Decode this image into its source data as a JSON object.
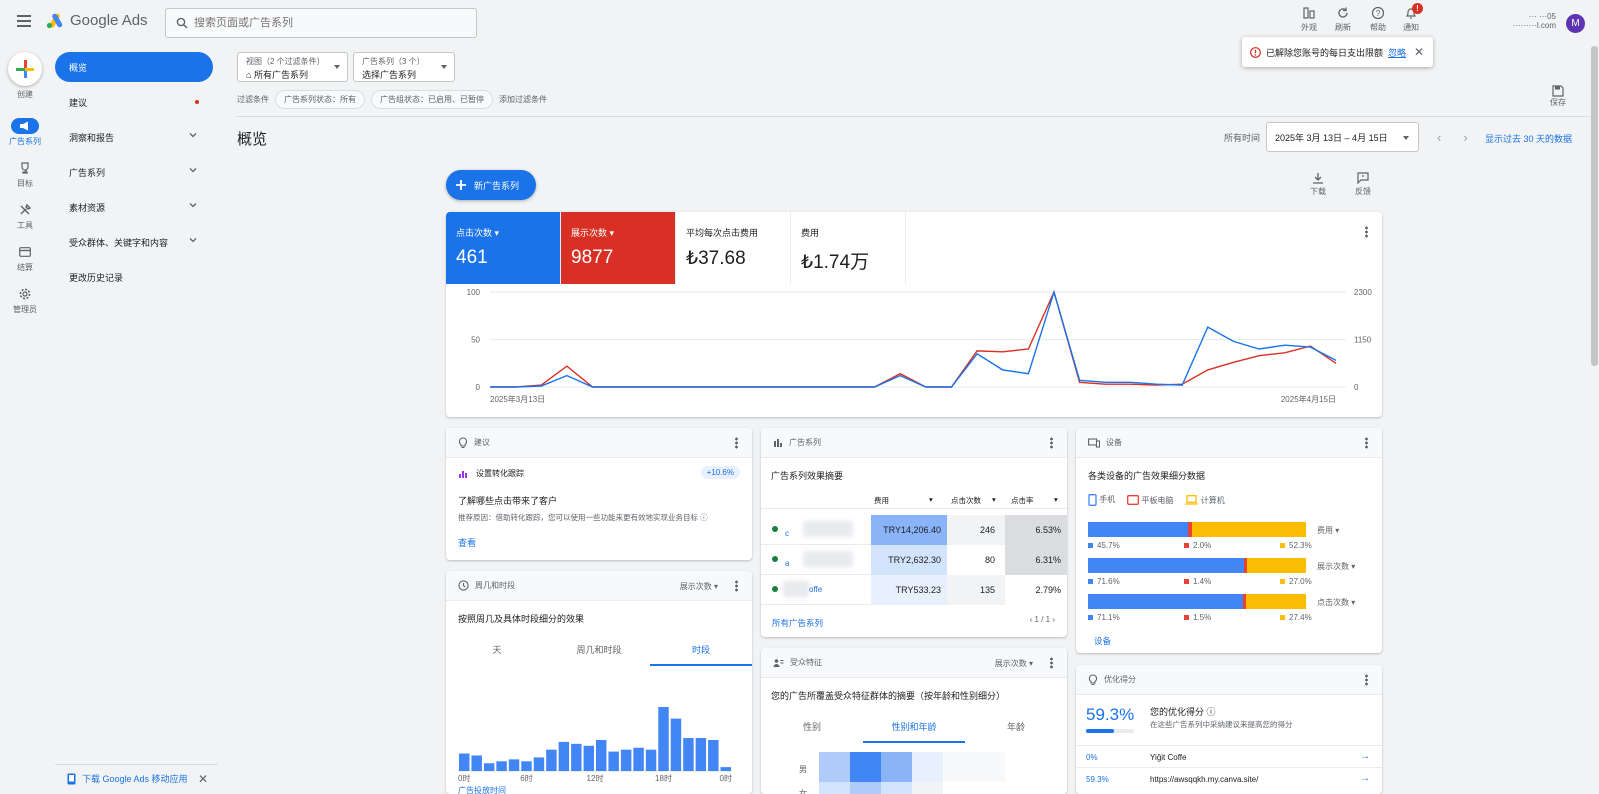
{
  "header": {
    "app_name": "Google Ads",
    "search_placeholder": "搜索页面或广告系列",
    "tools": [
      {
        "label": "外观"
      },
      {
        "label": "刷新"
      },
      {
        "label": "帮助"
      },
      {
        "label": "通知",
        "badge": "!"
      }
    ],
    "account_line1": "··· ···05",
    "account_line2": "·········l.com",
    "avatar_initial": "M"
  },
  "rail": {
    "create": "创建",
    "items": [
      {
        "label": "广告系列",
        "active": true
      },
      {
        "label": "目标"
      },
      {
        "label": "工具"
      },
      {
        "label": "结算"
      },
      {
        "label": "管理员"
      }
    ]
  },
  "nav": {
    "items": [
      {
        "label": "概览"
      },
      {
        "label": "建议"
      },
      {
        "label": "洞察和报告"
      },
      {
        "label": "广告系列"
      },
      {
        "label": "素材资源"
      },
      {
        "label": "受众群体、关键字和内容"
      },
      {
        "label": "更改历史记录"
      }
    ],
    "app_banner": "下载 Google Ads 移动应用"
  },
  "filters": {
    "view_label": "视图（2 个过滤条件）",
    "view_value": "所有广告系列",
    "campaign_label": "广告系列（3 个）",
    "campaign_value": "选择广告系列",
    "filter_title": "过滤条件",
    "chip1": "广告系列状态：所有",
    "chip2": "广告组状态：已启用、已暂停",
    "add_filter": "添加过滤条件"
  },
  "toast": {
    "text": "已解除您账号的每日支出限额",
    "link": "忽略"
  },
  "save_label": "保存",
  "page": {
    "title": "概览",
    "date_prefix": "所有时间",
    "date_range": "2025年 3月 13日 – 4月 15日",
    "date_link": "显示过去 30 天的数据",
    "new_campaign": "新广告系列",
    "download": "下载",
    "feedback": "反馈"
  },
  "metrics": [
    {
      "label": "点击次数",
      "value": "461"
    },
    {
      "label": "展示次数",
      "value": "9877"
    },
    {
      "label": "平均每次点击费用",
      "value": "₺37.68"
    },
    {
      "label": "费用",
      "value": "₺1.74万"
    }
  ],
  "chart_data": {
    "type": "line",
    "x_start_label": "2025年3月13日",
    "x_end_label": "2025年4月15日",
    "y_left_ticks": [
      "100",
      "50",
      "0"
    ],
    "y_right_ticks": [
      "2300",
      "1150",
      "0"
    ],
    "ylim_left": [
      0,
      100
    ],
    "ylim_right": [
      0,
      2300
    ],
    "series": [
      {
        "name": "点击次数",
        "color": "#1a73e8",
        "values": [
          0,
          0,
          1,
          12,
          0,
          0,
          0,
          0,
          0,
          0,
          0,
          0,
          0,
          0,
          0,
          0,
          12,
          0,
          0,
          35,
          18,
          14,
          100,
          7,
          5,
          5,
          3,
          2,
          63,
          48,
          40,
          44,
          42,
          28
        ]
      },
      {
        "name": "展示次数",
        "color": "#d93025",
        "values": [
          0,
          0,
          2,
          22,
          0,
          0,
          0,
          0,
          0,
          0,
          0,
          0,
          0,
          0,
          0,
          0,
          14,
          0,
          0,
          38,
          37,
          40,
          100,
          5,
          3,
          3,
          2,
          3,
          18,
          26,
          33,
          36,
          43,
          25
        ]
      }
    ]
  },
  "cards": {
    "suggest": {
      "title": "建议",
      "item": "设置转化跟踪",
      "badge": "+10.6%",
      "heading": "了解哪些点击带来了客户",
      "desc": "推荐原因：借助转化跟踪，您可以使用一些功能来更有效地实现业务目标",
      "view": "查看"
    },
    "campaigns": {
      "title": "广告系列",
      "subtitle": "广告系列效果摘要",
      "col1": "费用",
      "col2": "点击次数",
      "col3": "点击率",
      "rows": [
        {
          "name": "c",
          "cost": "TRY14,206.40",
          "clicks": "246",
          "ctr": "6.53%"
        },
        {
          "name": "a",
          "cost": "TRY2,632.30",
          "clicks": "80",
          "ctr": "6.31%"
        },
        {
          "name": "offe",
          "cost": "TRY533.23",
          "clicks": "135",
          "ctr": "2.79%"
        }
      ],
      "all": "所有广告系列",
      "page": "1 / 1"
    },
    "devices": {
      "title": "设备",
      "subtitle": "各类设备的广告效果细分数据",
      "legend": [
        "手机",
        "平板电脑",
        "计算机"
      ],
      "colors": [
        "#4285f4",
        "#ea4335",
        "#fbbc04"
      ],
      "rows": [
        {
          "metric": "费用",
          "values": [
            45.7,
            2.0,
            52.3
          ],
          "labels": [
            "45.7%",
            "2.0%",
            "52.3%"
          ]
        },
        {
          "metric": "展示次数",
          "values": [
            71.6,
            1.4,
            27.0
          ],
          "labels": [
            "71.6%",
            "1.4%",
            "27.0%"
          ]
        },
        {
          "metric": "点击次数",
          "values": [
            71.1,
            1.5,
            27.4
          ],
          "labels": [
            "71.1%",
            "1.5%",
            "27.4%"
          ]
        }
      ],
      "link": "设备"
    },
    "weekday": {
      "title": "周几和时段",
      "select": "展示次数",
      "subtitle": "按照周几及具体时段细分的效果",
      "tabs": [
        "天",
        "周几和时段",
        "时段"
      ],
      "bars": [
        18,
        16,
        8,
        10,
        12,
        10,
        14,
        22,
        30,
        28,
        26,
        32,
        20,
        22,
        24,
        22,
        66,
        54,
        34,
        34,
        32,
        4
      ],
      "x_labels": [
        "0时",
        "6时",
        "12时",
        "18时",
        "0时"
      ],
      "link": "广告投放时间"
    },
    "audience": {
      "title": "受众特征",
      "select": "展示次数",
      "subtitle": "您的广告所覆盖受众特征群体的摘要（按年龄和性别细分）",
      "tabs": [
        "性别",
        "性别和年龄",
        "年龄"
      ],
      "row_labels": [
        "男",
        "女"
      ]
    },
    "optimize": {
      "title": "优化得分",
      "score": "59.3%",
      "score_value": 59.3,
      "label": "您的优化得分",
      "desc": "在这些广告系列中采纳建议来提高您的得分",
      "rows": [
        {
          "pct": "0%",
          "name": "Yiğit Coffe"
        },
        {
          "pct": "59.3%",
          "name": "https://awsqqkh.my.canva.site/"
        }
      ]
    }
  }
}
